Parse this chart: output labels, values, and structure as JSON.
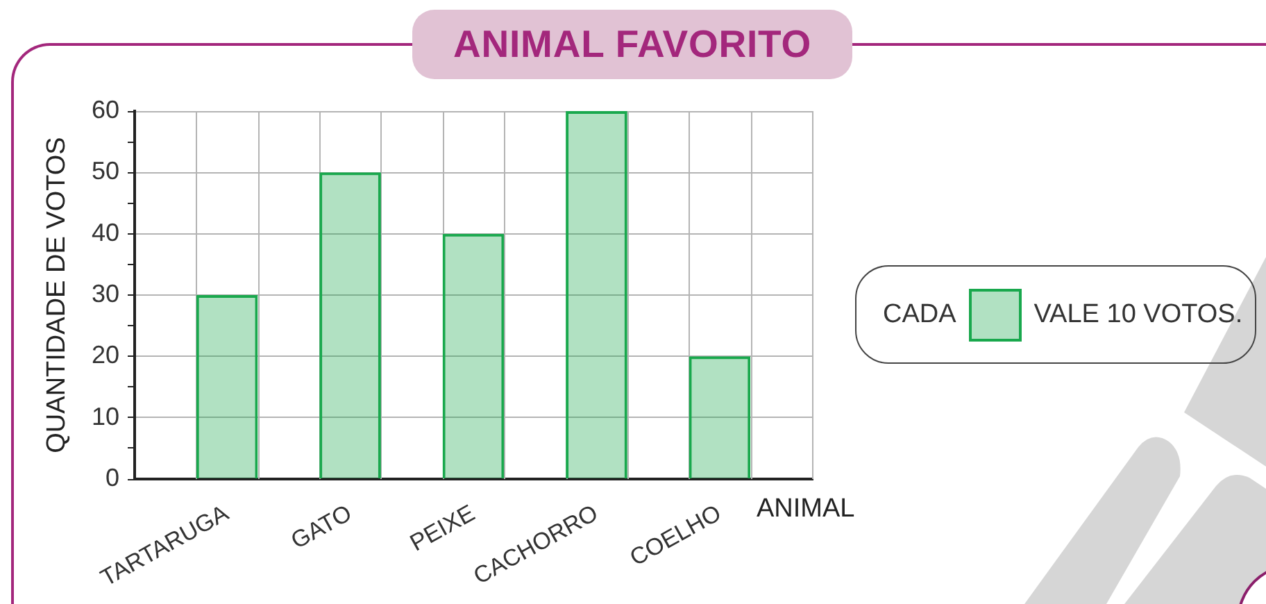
{
  "chart_data": {
    "type": "bar",
    "title": "ANIMAL FAVORITO",
    "xlabel": "ANIMAL",
    "ylabel": "QUANTIDADE DE VOTOS",
    "categories": [
      "TARTARUGA",
      "GATO",
      "PEIXE",
      "CACHORRO",
      "COELHO"
    ],
    "values": [
      30,
      50,
      40,
      60,
      20
    ],
    "color": "#19a84d",
    "ylim": [
      0,
      60
    ],
    "yticks": [
      0,
      {
        "value": 5,
        "label": null
      },
      10,
      {
        "value": 15,
        "label": null
      },
      20,
      {
        "value": 25,
        "label": null
      },
      30,
      {
        "value": 35,
        "label": null
      },
      40,
      {
        "value": 45,
        "label": null
      },
      50,
      {
        "value": 55,
        "label": null
      },
      60
    ],
    "grid": true,
    "annotations": [
      "CADA",
      "VALE 10 VOTOS."
    ]
  }
}
